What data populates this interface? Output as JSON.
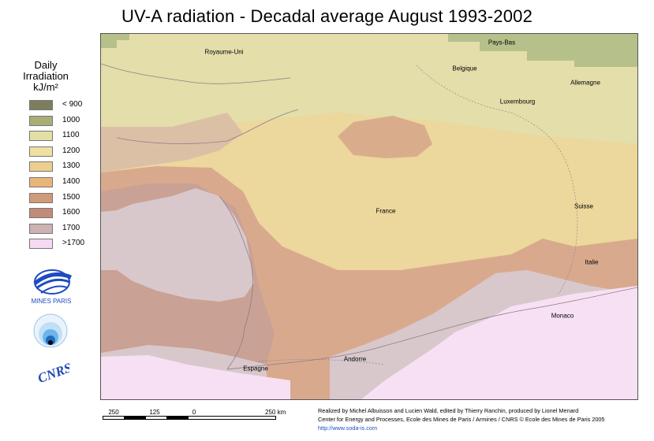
{
  "title": "UV-A radiation - Decadal average August 1993-2002",
  "legend": {
    "title_lines": [
      "Daily",
      "Irradiation",
      "kJ/m²"
    ],
    "items": [
      {
        "label": "< 900",
        "color": "#7d7f5c"
      },
      {
        "label": "1000",
        "color": "#a8ae74"
      },
      {
        "label": "1100",
        "color": "#e3e0a6"
      },
      {
        "label": "1200",
        "color": "#efe0a3"
      },
      {
        "label": "1300",
        "color": "#eccf8e"
      },
      {
        "label": "1400",
        "color": "#e9b67a"
      },
      {
        "label": "1500",
        "color": "#cf9a78"
      },
      {
        "label": "1600",
        "color": "#c28a78"
      },
      {
        "label": "1700",
        "color": "#ccb2b2"
      },
      {
        "label": ">1700",
        "color": "#f6d9f2"
      }
    ]
  },
  "map": {
    "labels": [
      "Pays-Bas",
      "Royaume-Uni",
      "Belgique",
      "Allemagne",
      "Luxembourg",
      "France",
      "Suisse",
      "Italie",
      "Monaco",
      "Andorre",
      "Espagne"
    ],
    "colors": {
      "base": "#ecd79c",
      "north_band": "#e3deaa",
      "green": "#b6c08a",
      "center_patch": "#d9ad8c",
      "south_zone": "#d9a98e",
      "southwest_zone": "#c9a195",
      "grey": "#d8c8cc",
      "pink": "#f8e0f4",
      "coast": "#8e7d84"
    }
  },
  "logos": [
    {
      "name": "Mines Paris",
      "text": "MINES PARIS"
    },
    {
      "name": "Observatory",
      "text": ""
    },
    {
      "name": "CNRS",
      "text": "CNRS"
    }
  ],
  "scale": {
    "ticks": [
      "250",
      "125",
      "0",
      "250 km"
    ]
  },
  "credits": {
    "line1": "Realized by Michel Albuisson and Lucien Wald, edited by Thierry Ranchin, produced by Lionel Menard",
    "line2": "Center for Energy and Processes,  Ecole des Mines de Paris / Armines / CNRS © Ecole des Mines de Paris 2005",
    "url": "http://www.soda-is.com"
  }
}
